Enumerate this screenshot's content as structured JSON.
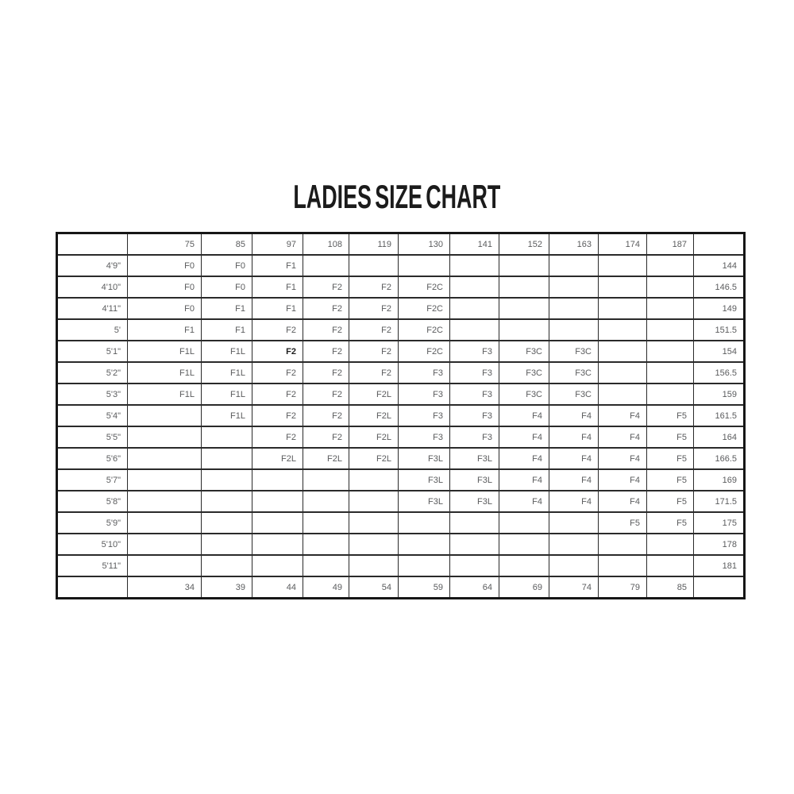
{
  "title": "LADIES SIZE CHART",
  "colors": {
    "background": "#ffffff",
    "title_text": "#1b1b1b",
    "cell_text_gray": "#5b5c5e",
    "bold_cell_text": "#1e1e1e",
    "outer_border": "#161616",
    "inner_border": "#2a2a2a"
  },
  "table": {
    "weights_lbs": [
      "75",
      "85",
      "97",
      "108",
      "119",
      "130",
      "141",
      "152",
      "163",
      "174",
      "187"
    ],
    "weights_kg": [
      "34",
      "39",
      "44",
      "49",
      "54",
      "59",
      "64",
      "69",
      "74",
      "79",
      "85"
    ],
    "bold_cells": [
      {
        "row": 4,
        "col": 2
      }
    ],
    "rows": [
      {
        "height_ft": "4'9\"",
        "sizes": [
          "F0",
          "F0",
          "F1",
          "",
          "",
          "",
          "",
          "",
          "",
          "",
          ""
        ],
        "height_cm": "144"
      },
      {
        "height_ft": "4'10\"",
        "sizes": [
          "F0",
          "F0",
          "F1",
          "F2",
          "F2",
          "F2C",
          "",
          "",
          "",
          "",
          ""
        ],
        "height_cm": "146.5"
      },
      {
        "height_ft": "4'11\"",
        "sizes": [
          "F0",
          "F1",
          "F1",
          "F2",
          "F2",
          "F2C",
          "",
          "",
          "",
          "",
          ""
        ],
        "height_cm": "149"
      },
      {
        "height_ft": "5'",
        "sizes": [
          "F1",
          "F1",
          "F2",
          "F2",
          "F2",
          "F2C",
          "",
          "",
          "",
          "",
          ""
        ],
        "height_cm": "151.5"
      },
      {
        "height_ft": "5'1\"",
        "sizes": [
          "F1L",
          "F1L",
          "F2",
          "F2",
          "F2",
          "F2C",
          "F3",
          "F3C",
          "F3C",
          "",
          ""
        ],
        "height_cm": "154"
      },
      {
        "height_ft": "5'2\"",
        "sizes": [
          "F1L",
          "F1L",
          "F2",
          "F2",
          "F2",
          "F3",
          "F3",
          "F3C",
          "F3C",
          "",
          ""
        ],
        "height_cm": "156.5"
      },
      {
        "height_ft": "5'3\"",
        "sizes": [
          "F1L",
          "F1L",
          "F2",
          "F2",
          "F2L",
          "F3",
          "F3",
          "F3C",
          "F3C",
          "",
          ""
        ],
        "height_cm": "159"
      },
      {
        "height_ft": "5'4\"",
        "sizes": [
          "",
          "F1L",
          "F2",
          "F2",
          "F2L",
          "F3",
          "F3",
          "F4",
          "F4",
          "F4",
          "F5"
        ],
        "height_cm": "161.5"
      },
      {
        "height_ft": "5'5\"",
        "sizes": [
          "",
          "",
          "F2",
          "F2",
          "F2L",
          "F3",
          "F3",
          "F4",
          "F4",
          "F4",
          "F5"
        ],
        "height_cm": "164"
      },
      {
        "height_ft": "5'6\"",
        "sizes": [
          "",
          "",
          "F2L",
          "F2L",
          "F2L",
          "F3L",
          "F3L",
          "F4",
          "F4",
          "F4",
          "F5"
        ],
        "height_cm": "166.5"
      },
      {
        "height_ft": "5'7\"",
        "sizes": [
          "",
          "",
          "",
          "",
          "",
          "F3L",
          "F3L",
          "F4",
          "F4",
          "F4",
          "F5"
        ],
        "height_cm": "169"
      },
      {
        "height_ft": "5'8\"",
        "sizes": [
          "",
          "",
          "",
          "",
          "",
          "F3L",
          "F3L",
          "F4",
          "F4",
          "F4",
          "F5"
        ],
        "height_cm": "171.5"
      },
      {
        "height_ft": "5'9\"",
        "sizes": [
          "",
          "",
          "",
          "",
          "",
          "",
          "",
          "",
          "",
          "F5",
          "F5"
        ],
        "height_cm": "175"
      },
      {
        "height_ft": "5'10\"",
        "sizes": [
          "",
          "",
          "",
          "",
          "",
          "",
          "",
          "",
          "",
          "",
          ""
        ],
        "height_cm": "178"
      },
      {
        "height_ft": "5'11\"",
        "sizes": [
          "",
          "",
          "",
          "",
          "",
          "",
          "",
          "",
          "",
          "",
          ""
        ],
        "height_cm": "181"
      }
    ]
  },
  "chart_data": {
    "type": "table",
    "title": "LADIES SIZE CHART",
    "top_header_weights_lbs": [
      75,
      85,
      97,
      108,
      119,
      130,
      141,
      152,
      163,
      174,
      187
    ],
    "bottom_footer_weights_kg": [
      34,
      39,
      44,
      49,
      54,
      59,
      64,
      69,
      74,
      79,
      85
    ],
    "left_column_heights": [
      "4'9\"",
      "4'10\"",
      "4'11\"",
      "5'",
      "5'1\"",
      "5'2\"",
      "5'3\"",
      "5'4\"",
      "5'5\"",
      "5'6\"",
      "5'7\"",
      "5'8\"",
      "5'9\"",
      "5'10\"",
      "5'11\""
    ],
    "right_column_heights_cm": [
      144,
      146.5,
      149,
      151.5,
      154,
      156.5,
      159,
      161.5,
      164,
      166.5,
      169,
      171.5,
      175,
      178,
      181
    ],
    "size_codes_by_row": [
      [
        "F0",
        "F0",
        "F1",
        null,
        null,
        null,
        null,
        null,
        null,
        null,
        null
      ],
      [
        "F0",
        "F0",
        "F1",
        "F2",
        "F2",
        "F2C",
        null,
        null,
        null,
        null,
        null
      ],
      [
        "F0",
        "F1",
        "F1",
        "F2",
        "F2",
        "F2C",
        null,
        null,
        null,
        null,
        null
      ],
      [
        "F1",
        "F1",
        "F2",
        "F2",
        "F2",
        "F2C",
        null,
        null,
        null,
        null,
        null
      ],
      [
        "F1L",
        "F1L",
        "F2",
        "F2",
        "F2",
        "F2C",
        "F3",
        "F3C",
        "F3C",
        null,
        null
      ],
      [
        "F1L",
        "F1L",
        "F2",
        "F2",
        "F2",
        "F3",
        "F3",
        "F3C",
        "F3C",
        null,
        null
      ],
      [
        "F1L",
        "F1L",
        "F2",
        "F2",
        "F2L",
        "F3",
        "F3",
        "F3C",
        "F3C",
        null,
        null
      ],
      [
        null,
        "F1L",
        "F2",
        "F2",
        "F2L",
        "F3",
        "F3",
        "F4",
        "F4",
        "F4",
        "F5"
      ],
      [
        null,
        null,
        "F2",
        "F2",
        "F2L",
        "F3",
        "F3",
        "F4",
        "F4",
        "F4",
        "F5"
      ],
      [
        null,
        null,
        "F2L",
        "F2L",
        "F2L",
        "F3L",
        "F3L",
        "F4",
        "F4",
        "F4",
        "F5"
      ],
      [
        null,
        null,
        null,
        null,
        null,
        "F3L",
        "F3L",
        "F4",
        "F4",
        "F4",
        "F5"
      ],
      [
        null,
        null,
        null,
        null,
        null,
        "F3L",
        "F3L",
        "F4",
        "F4",
        "F4",
        "F5"
      ],
      [
        null,
        null,
        null,
        null,
        null,
        null,
        null,
        null,
        null,
        "F5",
        "F5"
      ],
      [
        null,
        null,
        null,
        null,
        null,
        null,
        null,
        null,
        null,
        null,
        null
      ],
      [
        null,
        null,
        null,
        null,
        null,
        null,
        null,
        null,
        null,
        null,
        null
      ]
    ],
    "highlighted_bold_cell": {
      "height": "5'1\"",
      "weight_lbs": 97,
      "value": "F2"
    },
    "layout": {
      "grid": true,
      "header_position": "top",
      "footer_position": "bottom"
    }
  }
}
